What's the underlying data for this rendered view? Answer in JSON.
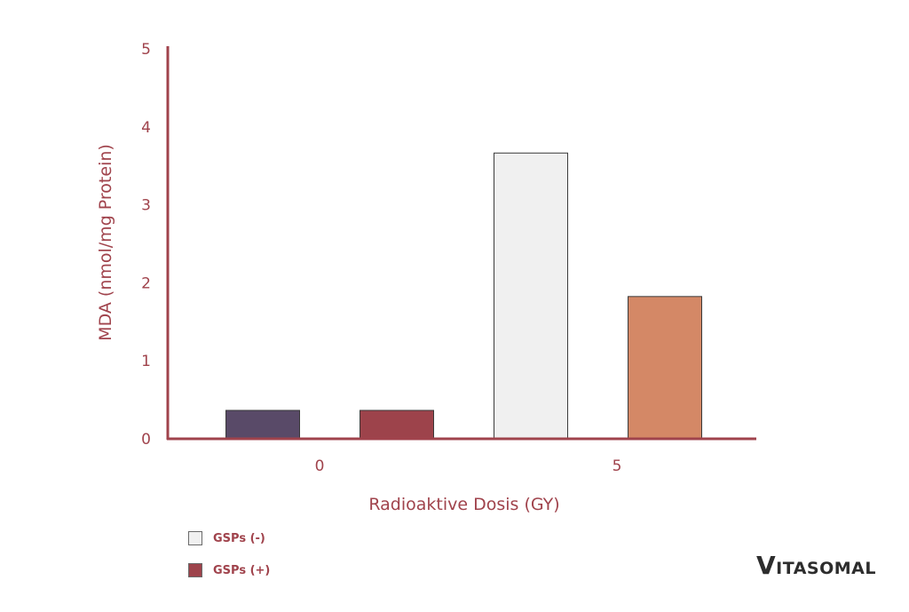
{
  "chart_data": {
    "type": "bar",
    "categories": [
      "0",
      "5"
    ],
    "bars": [
      {
        "category": "0",
        "value": 0.37,
        "color": "#594a68"
      },
      {
        "category": "0",
        "value": 0.37,
        "color": "#9d434b"
      },
      {
        "category": "5",
        "value": 3.67,
        "color": "#f0f0f0"
      },
      {
        "category": "5",
        "value": 1.83,
        "color": "#d48866"
      }
    ],
    "xlabel": "Radioaktive Dosis (GY)",
    "ylabel": "MDA (nmol/mg Protein)",
    "ylim": [
      0,
      5
    ],
    "yticks": [
      "0",
      "1",
      "2",
      "3",
      "4",
      "5"
    ],
    "grid": false,
    "legend_position": "bottom-left",
    "axis_color": "#a0434c"
  },
  "legend": {
    "items": [
      {
        "label": "GSPs (-)",
        "color": "#f0f0f0"
      },
      {
        "label": "GSPs (+)",
        "color": "#9d434b"
      }
    ]
  },
  "brand": {
    "first_letter": "V",
    "rest": "ITASOMAL"
  }
}
